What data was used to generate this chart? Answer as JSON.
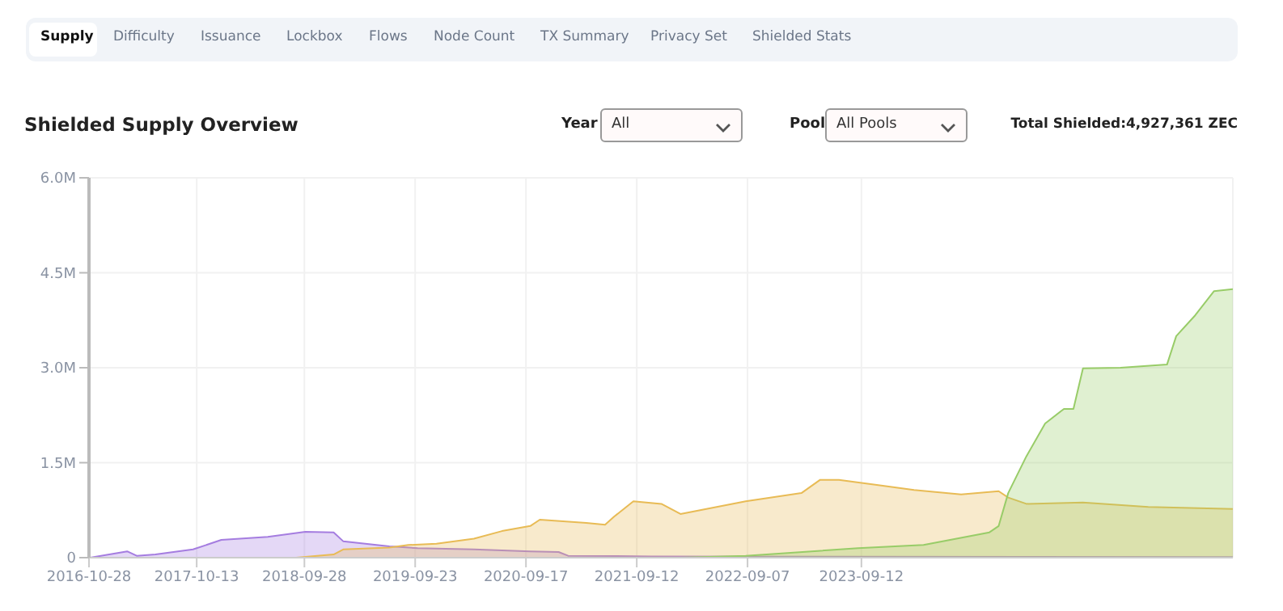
{
  "chart_data": {
    "type": "area",
    "title": "Shielded Supply Overview",
    "annotations": [
      "Supply",
      "Difficulty",
      "Issuance",
      "Lockbox",
      "Flows",
      "Node Count",
      "TX Summary",
      "Privacy Set",
      "Shielded Stats",
      "Year",
      "All",
      "Pool",
      "All Pools",
      "Total Shielded:4,927,361 ZEC"
    ],
    "xlim": [
      "2016-10-28",
      "2027-01"
    ],
    "xticks": [
      "2016-10-28",
      "2017-10-13",
      "2018-09-28",
      "2019-09-23",
      "2020-09-17",
      "2021-09-12",
      "2022-09-07",
      "2023-09-12"
    ],
    "ylim": [
      0,
      6000000
    ],
    "yticks": [
      {
        "value": 0,
        "label": "0"
      },
      {
        "value": 1500000,
        "label": "1.5M"
      },
      {
        "value": 3000000,
        "label": "3.0M"
      },
      {
        "value": 4500000,
        "label": "4.5M"
      },
      {
        "value": 6000000,
        "label": "6.0M"
      }
    ],
    "grid": true,
    "series": [
      {
        "color": "#a57de0",
        "x": [
          "2016-11",
          "2017-03",
          "2017-04",
          "2017-06",
          "2017-10",
          "2018-01",
          "2018-06",
          "2018-10",
          "2019-01",
          "2019-02",
          "2019-07",
          "2019-10",
          "2020-04",
          "2020-10",
          "2021-01",
          "2021-02",
          "2021-11",
          "2027-01"
        ],
        "values": [
          0,
          100000,
          30000,
          50000,
          130000,
          280000,
          330000,
          410000,
          400000,
          260000,
          180000,
          150000,
          130000,
          100000,
          90000,
          30000,
          20000,
          10000
        ]
      },
      {
        "color": "#e8bb55",
        "x": [
          "2018-09",
          "2019-01",
          "2019-02",
          "2019-07",
          "2019-09",
          "2019-12",
          "2020-04",
          "2020-07",
          "2020-10",
          "2020-11",
          "2021-04",
          "2021-06",
          "2021-07",
          "2021-09",
          "2021-12",
          "2022-02",
          "2022-09",
          "2023-03",
          "2023-05",
          "2023-07",
          "2023-11",
          "2024-03",
          "2024-08",
          "2024-12",
          "2025-01",
          "2025-03",
          "2025-09",
          "2026-04",
          "2027-01"
        ],
        "values": [
          0,
          50000,
          130000,
          160000,
          200000,
          220000,
          300000,
          420000,
          500000,
          600000,
          550000,
          520000,
          650000,
          890000,
          850000,
          690000,
          890000,
          1020000,
          1230000,
          1230000,
          1150000,
          1070000,
          1000000,
          1050000,
          950000,
          850000,
          870000,
          800000,
          770000
        ]
      },
      {
        "color": "#98cc68",
        "x": [
          "2022-02",
          "2022-09",
          "2023-09",
          "2024-04",
          "2024-11",
          "2024-12",
          "2025-01",
          "2025-03",
          "2025-05",
          "2025-07",
          "2025-08",
          "2025-09",
          "2026-01",
          "2026-06",
          "2026-07",
          "2026-09",
          "2026-11",
          "2027-01"
        ],
        "values": [
          0,
          30000,
          150000,
          200000,
          400000,
          500000,
          1020000,
          1600000,
          2120000,
          2350000,
          2350000,
          2990000,
          3000000,
          3050000,
          3500000,
          3830000,
          4210000,
          4240000
        ]
      }
    ]
  }
}
